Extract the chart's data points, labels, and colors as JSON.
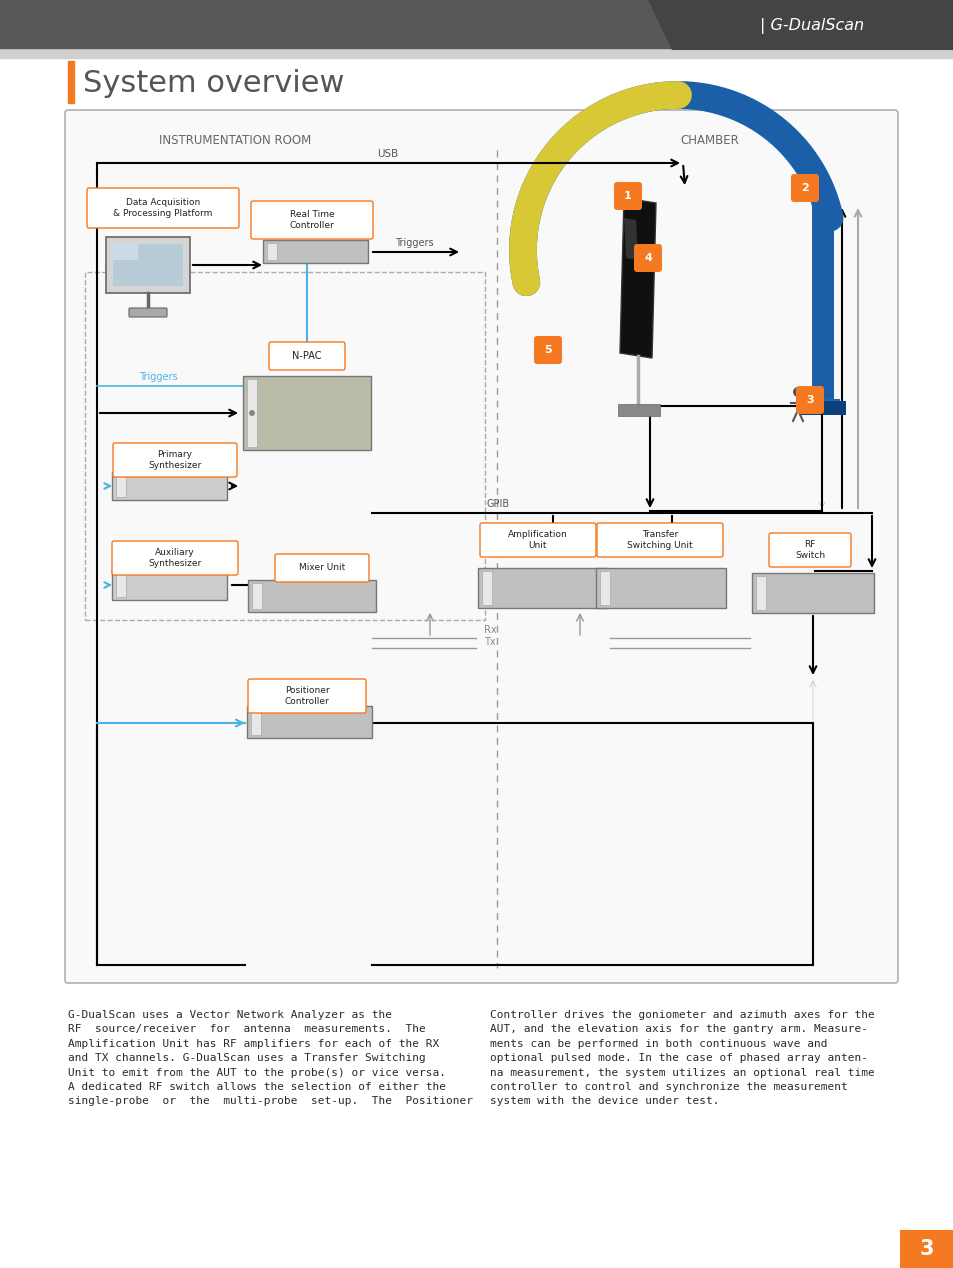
{
  "title": "System overview",
  "header_text": "| G-DualScan",
  "orange": "#f47920",
  "blue_line": "#4db3e6",
  "dark_gray": "#585858",
  "mid_gray": "#888888",
  "light_gray": "#cccccc",
  "diagram_border": "#aaaaaa",
  "text_color": "#333333",
  "chamber_label": "CHAMBER",
  "instr_label": "INSTRUMENTATION ROOM",
  "usb_label": "USB",
  "triggers_label": "Triggers",
  "gpib_label": "GPIB",
  "rx_label": "Rx",
  "tx_label": "Tx",
  "numbers": [
    "1",
    "2",
    "3",
    "4",
    "5"
  ],
  "para_left": "G-DualScan uses a Vector Network Analyzer as the\nRF  source/receiver  for  antenna  measurements.  The\nAmplification Unit has RF amplifiers for each of the RX\nand TX channels. G-DualScan uses a Transfer Switching\nUnit to emit from the AUT to the probe(s) or vice versa.\nA dedicated RF switch allows the selection of either the\nsingle-probe  or  the  multi-probe  set-up.  The  Positioner",
  "para_right": "Controller drives the goniometer and azimuth axes for the\nAUT, and the elevation axis for the gantry arm. Measure-\nments can be performed in both continuous wave and\noptional pulsed mode. In the case of phased array anten-\nna measurement, the system utilizes an optional real time\ncontroller to control and synchronize the measurement\nsystem with the device under test.",
  "page_num": "3"
}
